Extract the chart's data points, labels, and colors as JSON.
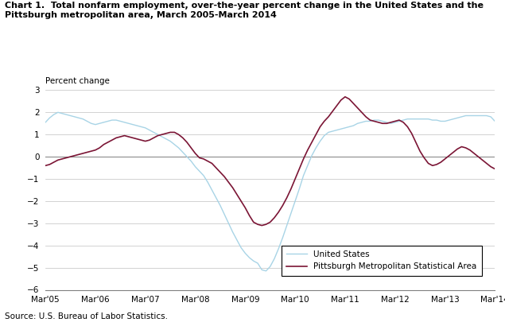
{
  "title_line1": "Chart 1.  Total nonfarm employment, over-the-year percent change in the United States and the",
  "title_line2": "Pittsburgh metropolitan area, March 2005-March 2014",
  "ylabel": "Percent change",
  "source": "Source: U.S. Bureau of Labor Statistics.",
  "xlabels": [
    "Mar'05",
    "Mar'06",
    "Mar'07",
    "Mar'08",
    "Mar'09",
    "Mar'10",
    "Mar'11",
    "Mar'12",
    "Mar'13",
    "Mar'14"
  ],
  "ylim": [
    -6.0,
    3.0
  ],
  "yticks": [
    -6.0,
    -5.0,
    -4.0,
    -3.0,
    -2.0,
    -1.0,
    0.0,
    1.0,
    2.0,
    3.0
  ],
  "us_color": "#a8d4e6",
  "pit_color": "#7b1535",
  "us_label": "United States",
  "pit_label": "Pittsburgh Metropolitan Statistical Area",
  "us_data": [
    1.55,
    1.75,
    1.9,
    2.0,
    1.95,
    1.9,
    1.85,
    1.8,
    1.75,
    1.7,
    1.6,
    1.5,
    1.45,
    1.5,
    1.55,
    1.6,
    1.65,
    1.65,
    1.6,
    1.55,
    1.5,
    1.45,
    1.4,
    1.35,
    1.3,
    1.2,
    1.1,
    1.0,
    0.9,
    0.8,
    0.7,
    0.55,
    0.4,
    0.2,
    0.0,
    -0.2,
    -0.45,
    -0.65,
    -0.85,
    -1.15,
    -1.5,
    -1.85,
    -2.2,
    -2.6,
    -3.0,
    -3.4,
    -3.75,
    -4.1,
    -4.35,
    -4.55,
    -4.7,
    -4.8,
    -5.1,
    -5.15,
    -4.95,
    -4.6,
    -4.15,
    -3.65,
    -3.1,
    -2.55,
    -2.0,
    -1.45,
    -0.85,
    -0.4,
    0.05,
    0.4,
    0.7,
    0.95,
    1.1,
    1.15,
    1.2,
    1.25,
    1.3,
    1.35,
    1.4,
    1.5,
    1.55,
    1.6,
    1.6,
    1.65,
    1.65,
    1.6,
    1.55,
    1.5,
    1.55,
    1.6,
    1.65,
    1.7,
    1.7,
    1.7,
    1.7,
    1.7,
    1.7,
    1.65,
    1.65,
    1.6,
    1.6,
    1.65,
    1.7,
    1.75,
    1.8,
    1.85,
    1.85,
    1.85,
    1.85,
    1.85,
    1.85,
    1.8,
    1.6
  ],
  "pit_data": [
    -0.4,
    -0.35,
    -0.25,
    -0.15,
    -0.1,
    -0.05,
    0.0,
    0.05,
    0.1,
    0.15,
    0.2,
    0.25,
    0.3,
    0.4,
    0.55,
    0.65,
    0.75,
    0.85,
    0.9,
    0.95,
    0.9,
    0.85,
    0.8,
    0.75,
    0.7,
    0.75,
    0.85,
    0.95,
    1.0,
    1.05,
    1.1,
    1.1,
    1.0,
    0.85,
    0.65,
    0.4,
    0.15,
    -0.05,
    -0.1,
    -0.2,
    -0.3,
    -0.5,
    -0.7,
    -0.9,
    -1.15,
    -1.4,
    -1.7,
    -2.0,
    -2.3,
    -2.65,
    -2.95,
    -3.05,
    -3.1,
    -3.05,
    -2.95,
    -2.75,
    -2.5,
    -2.2,
    -1.85,
    -1.45,
    -1.0,
    -0.55,
    -0.1,
    0.3,
    0.65,
    1.0,
    1.35,
    1.6,
    1.8,
    2.05,
    2.3,
    2.55,
    2.7,
    2.6,
    2.4,
    2.2,
    2.0,
    1.8,
    1.65,
    1.6,
    1.55,
    1.5,
    1.5,
    1.55,
    1.6,
    1.65,
    1.55,
    1.35,
    1.05,
    0.65,
    0.25,
    -0.05,
    -0.3,
    -0.4,
    -0.35,
    -0.25,
    -0.1,
    0.05,
    0.2,
    0.35,
    0.45,
    0.4,
    0.3,
    0.15,
    0.0,
    -0.15,
    -0.3,
    -0.45,
    -0.55
  ]
}
